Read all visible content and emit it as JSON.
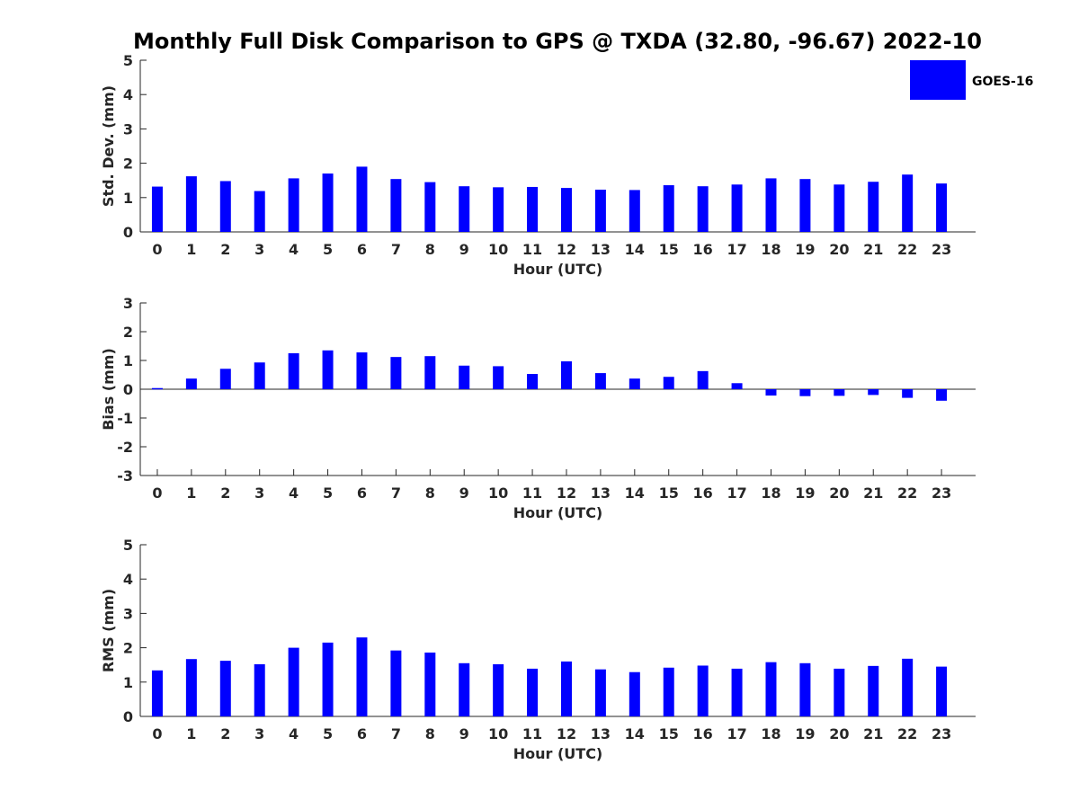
{
  "figure": {
    "title": "Monthly Full Disk Comparison to GPS @ TXDA (32.80, -96.67) 2022-10",
    "legend": {
      "label": "GOES-16",
      "color": "#0000ff",
      "placement": "top-right"
    }
  },
  "chart_data": [
    {
      "type": "bar",
      "name": "std-dev",
      "categories": [
        "0",
        "1",
        "2",
        "3",
        "4",
        "5",
        "6",
        "7",
        "8",
        "9",
        "10",
        "11",
        "12",
        "13",
        "14",
        "15",
        "16",
        "17",
        "18",
        "19",
        "20",
        "21",
        "22",
        "23"
      ],
      "series": [
        {
          "name": "GOES-16",
          "color": "#0000ff",
          "values": [
            1.32,
            1.62,
            1.48,
            1.19,
            1.56,
            1.7,
            1.9,
            1.54,
            1.45,
            1.33,
            1.3,
            1.31,
            1.28,
            1.23,
            1.22,
            1.36,
            1.33,
            1.38,
            1.56,
            1.54,
            1.38,
            1.46,
            1.67,
            1.41
          ]
        }
      ],
      "xlabel": "Hour (UTC)",
      "ylabel": "Std. Dev. (mm)",
      "ylim": [
        0,
        5
      ],
      "yticks": [
        0,
        1,
        2,
        3,
        4,
        5
      ],
      "zero_line": false,
      "grid": false
    },
    {
      "type": "bar",
      "name": "bias",
      "categories": [
        "0",
        "1",
        "2",
        "3",
        "4",
        "5",
        "6",
        "7",
        "8",
        "9",
        "10",
        "11",
        "12",
        "13",
        "14",
        "15",
        "16",
        "17",
        "18",
        "19",
        "20",
        "21",
        "22",
        "23"
      ],
      "series": [
        {
          "name": "GOES-16",
          "color": "#0000ff",
          "values": [
            0.04,
            0.37,
            0.71,
            0.93,
            1.25,
            1.35,
            1.28,
            1.12,
            1.15,
            0.82,
            0.8,
            0.53,
            0.97,
            0.56,
            0.37,
            0.43,
            0.63,
            0.21,
            -0.22,
            -0.24,
            -0.23,
            -0.2,
            -0.3,
            -0.4
          ]
        }
      ],
      "xlabel": "Hour (UTC)",
      "ylabel": "Bias (mm)",
      "ylim": [
        -3,
        3
      ],
      "yticks": [
        -3,
        -2,
        -1,
        0,
        1,
        2,
        3
      ],
      "zero_line": true,
      "grid": false
    },
    {
      "type": "bar",
      "name": "rms",
      "categories": [
        "0",
        "1",
        "2",
        "3",
        "4",
        "5",
        "6",
        "7",
        "8",
        "9",
        "10",
        "11",
        "12",
        "13",
        "14",
        "15",
        "16",
        "17",
        "18",
        "19",
        "20",
        "21",
        "22",
        "23"
      ],
      "series": [
        {
          "name": "GOES-16",
          "color": "#0000ff",
          "values": [
            1.34,
            1.67,
            1.62,
            1.52,
            2.0,
            2.15,
            2.3,
            1.92,
            1.86,
            1.55,
            1.52,
            1.39,
            1.6,
            1.37,
            1.29,
            1.42,
            1.48,
            1.39,
            1.58,
            1.55,
            1.39,
            1.47,
            1.68,
            1.45
          ]
        }
      ],
      "xlabel": "Hour (UTC)",
      "ylabel": "RMS (mm)",
      "ylim": [
        0,
        5
      ],
      "yticks": [
        0,
        1,
        2,
        3,
        4,
        5
      ],
      "zero_line": false,
      "grid": false
    }
  ]
}
